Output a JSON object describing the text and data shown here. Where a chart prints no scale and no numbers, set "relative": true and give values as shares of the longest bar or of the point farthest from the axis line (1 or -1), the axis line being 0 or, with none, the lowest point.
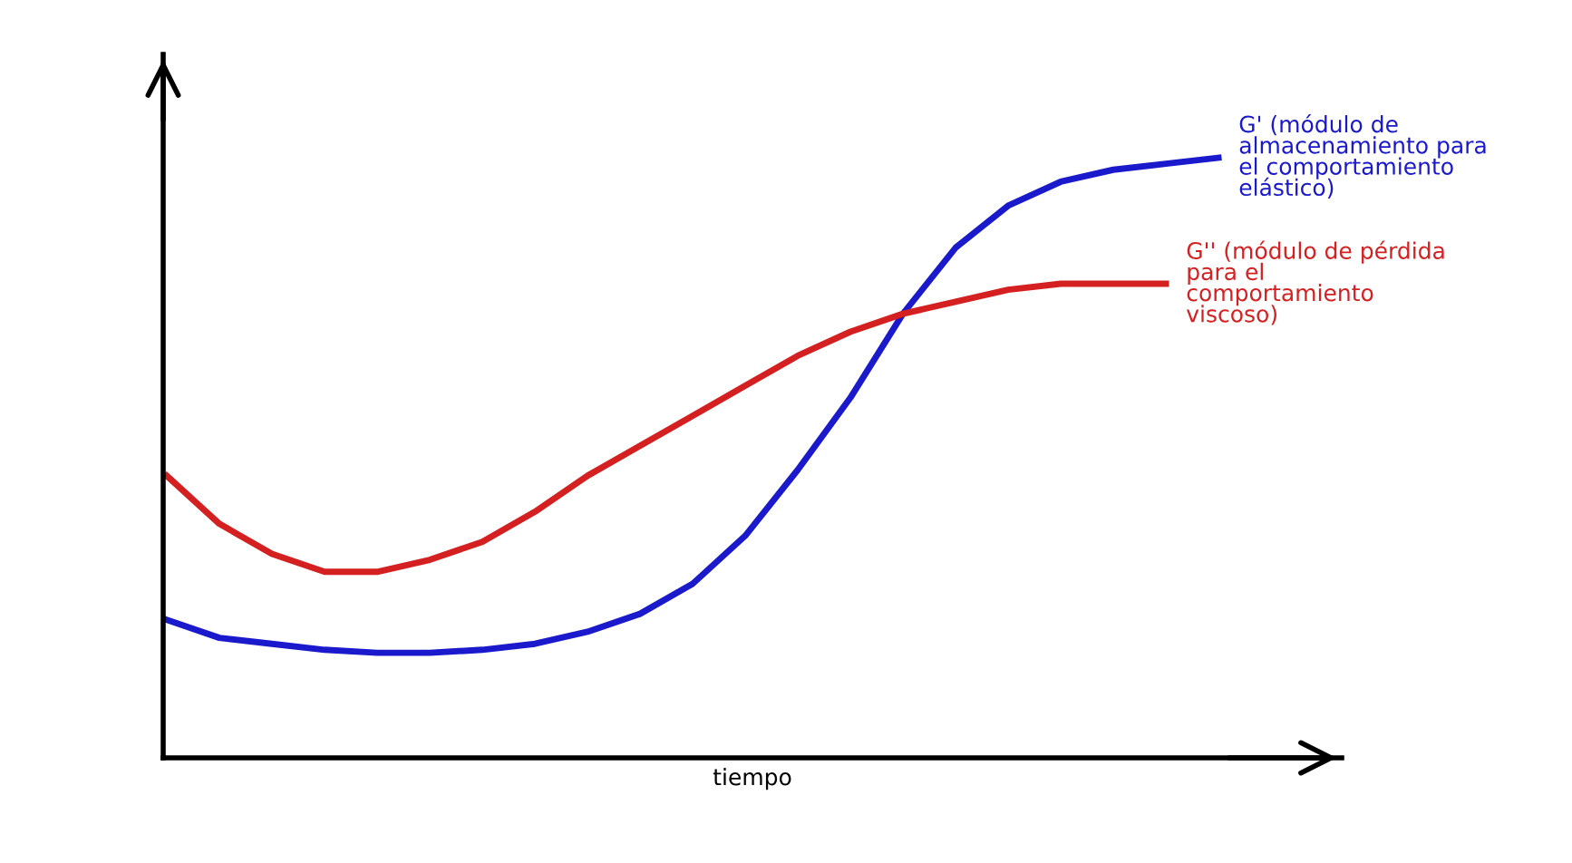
{
  "chart_data": {
    "type": "line",
    "relative": true,
    "xlabel": "tiempo",
    "tick_labels": false,
    "marker": "none",
    "line_style": "solid",
    "categories": [
      null,
      null,
      null,
      null,
      null,
      null,
      null,
      null,
      null,
      null,
      null,
      null,
      null,
      null,
      null,
      null,
      null,
      null,
      null,
      null,
      null
    ],
    "series": [
      {
        "name": "G' (módulo de\nalmacenamiento para\nel comportamiento\nelástico)",
        "color": "#1a1acc",
        "values": [
          0.23,
          0.2,
          0.19,
          0.18,
          0.175,
          0.175,
          0.18,
          0.19,
          0.21,
          0.24,
          0.29,
          0.37,
          0.48,
          0.6,
          0.74,
          0.85,
          0.92,
          0.96,
          0.98,
          0.99,
          1
        ]
      },
      {
        "name": "G'' (módulo de pérdida\npara el\ncomportamiento\nviscoso)",
        "color": "#d42020",
        "values": [
          0.47,
          0.39,
          0.34,
          0.31,
          0.31,
          0.33,
          0.36,
          0.41,
          0.47,
          0.52,
          0.57,
          0.62,
          0.67,
          0.71,
          0.74,
          0.76,
          0.78,
          0.79,
          0.79,
          0.79,
          null
        ]
      }
    ]
  }
}
